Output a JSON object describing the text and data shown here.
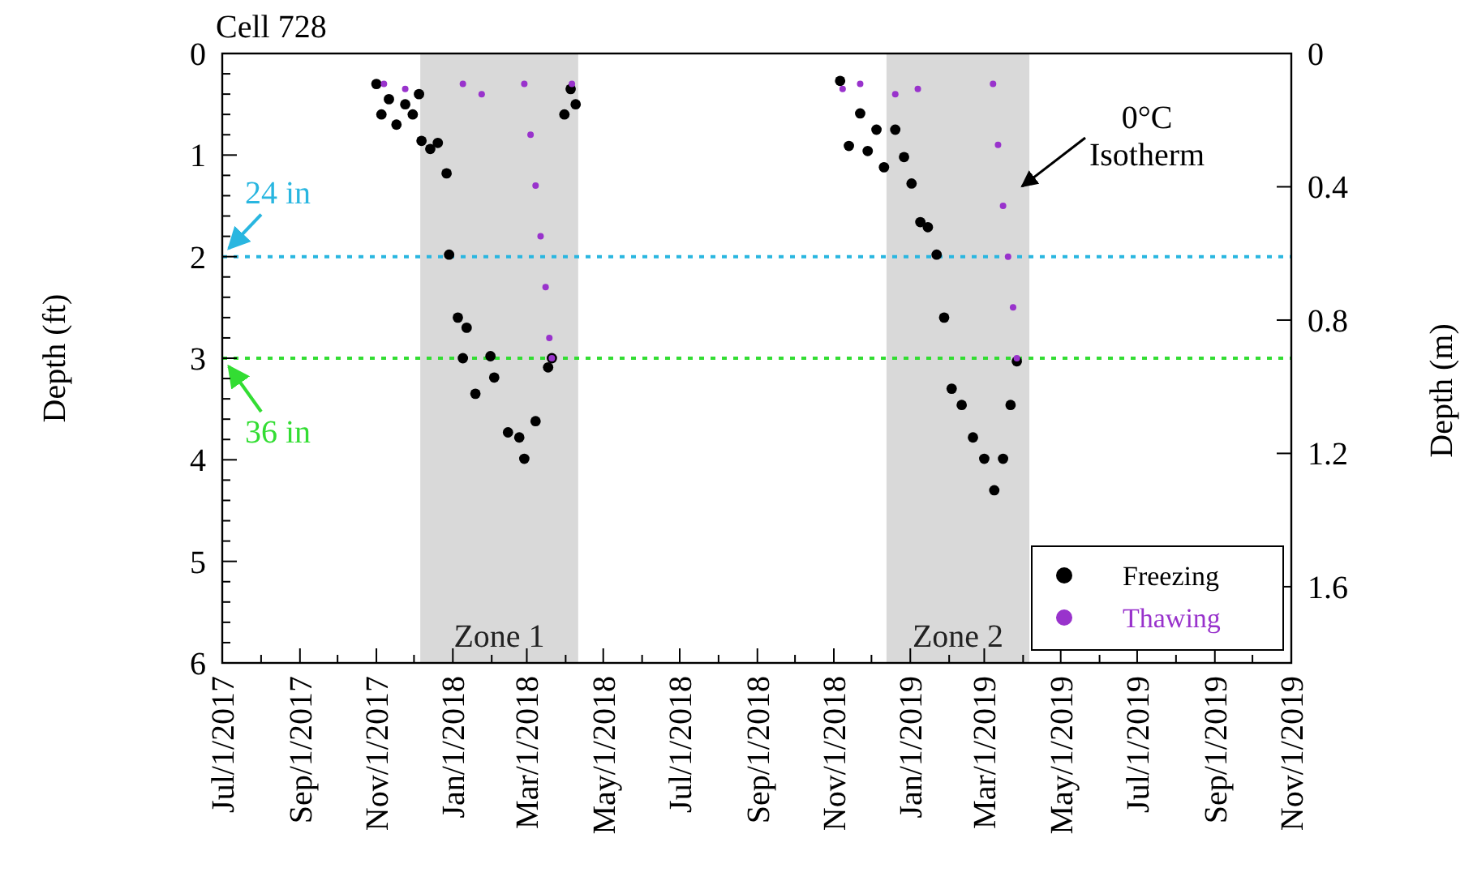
{
  "chart_data": {
    "type": "scatter",
    "title": "Cell 728",
    "ylabel": "Depth (ft)",
    "y2label": "Depth (m)",
    "ylim": [
      6,
      0
    ],
    "yticks": [
      0,
      {
        "value": 0.2,
        "label": null
      },
      {
        "value": 0.4,
        "label": null
      },
      {
        "value": 0.6,
        "label": null
      },
      {
        "value": 0.8,
        "label": null
      },
      1,
      {
        "value": 1.2,
        "label": null
      },
      {
        "value": 1.4,
        "label": null
      },
      {
        "value": 1.6,
        "label": null
      },
      {
        "value": 1.8,
        "label": null
      },
      2,
      {
        "value": 2.2,
        "label": null
      },
      {
        "value": 2.4,
        "label": null
      },
      {
        "value": 2.6,
        "label": null
      },
      {
        "value": 2.8,
        "label": null
      },
      3,
      {
        "value": 3.2,
        "label": null
      },
      {
        "value": 3.4,
        "label": null
      },
      {
        "value": 3.6,
        "label": null
      },
      {
        "value": 3.8,
        "label": null
      },
      4,
      {
        "value": 4.2,
        "label": null
      },
      {
        "value": 4.4,
        "label": null
      },
      {
        "value": 4.6,
        "label": null
      },
      {
        "value": 4.8,
        "label": null
      },
      5,
      {
        "value": 5.2,
        "label": null
      },
      {
        "value": 5.4,
        "label": null
      },
      {
        "value": 5.6,
        "label": null
      },
      {
        "value": 5.8,
        "label": null
      },
      6
    ],
    "y2lim": [
      1.8288,
      0
    ],
    "y2ticks": [
      0,
      0.4,
      0.8,
      1.2,
      1.6
    ],
    "xlim": [
      "2017-07-01",
      "2019-11-01"
    ],
    "xticks": [
      {
        "value": "2017-07-01",
        "label": "Jul/1/2017"
      },
      {
        "value": "2017-08-01",
        "label": null
      },
      {
        "value": "2017-09-01",
        "label": "Sep/1/2017"
      },
      {
        "value": "2017-10-01",
        "label": null
      },
      {
        "value": "2017-11-01",
        "label": "Nov/1/2017"
      },
      {
        "value": "2017-12-01",
        "label": null
      },
      {
        "value": "2018-01-01",
        "label": "Jan/1/2018"
      },
      {
        "value": "2018-02-01",
        "label": null
      },
      {
        "value": "2018-03-01",
        "label": "Mar/1/2018"
      },
      {
        "value": "2018-04-01",
        "label": null
      },
      {
        "value": "2018-05-01",
        "label": "May/1/2018"
      },
      {
        "value": "2018-06-01",
        "label": null
      },
      {
        "value": "2018-07-01",
        "label": "Jul/1/2018"
      },
      {
        "value": "2018-08-01",
        "label": null
      },
      {
        "value": "2018-09-01",
        "label": "Sep/1/2018"
      },
      {
        "value": "2018-10-01",
        "label": null
      },
      {
        "value": "2018-11-01",
        "label": "Nov/1/2018"
      },
      {
        "value": "2018-12-01",
        "label": null
      },
      {
        "value": "2019-01-01",
        "label": "Jan/1/2019"
      },
      {
        "value": "2019-02-01",
        "label": null
      },
      {
        "value": "2019-03-01",
        "label": "Mar/1/2019"
      },
      {
        "value": "2019-04-01",
        "label": null
      },
      {
        "value": "2019-05-01",
        "label": "May/1/2019"
      },
      {
        "value": "2019-06-01",
        "label": null
      },
      {
        "value": "2019-07-01",
        "label": "Jul/1/2019"
      },
      {
        "value": "2019-08-01",
        "label": null
      },
      {
        "value": "2019-09-01",
        "label": "Sep/1/2019"
      },
      {
        "value": "2019-10-01",
        "label": null
      },
      {
        "value": "2019-11-01",
        "label": "Nov/1/2019"
      }
    ],
    "series": [
      {
        "name": "Freezing",
        "color": "#000000",
        "x": [
          "2017-11-01",
          "2017-11-05",
          "2017-11-11",
          "2017-11-17",
          "2017-11-24",
          "2017-11-30",
          "2017-12-05",
          "2017-12-07",
          "2017-12-14",
          "2017-12-20",
          "2017-12-27",
          "2017-12-29",
          "2018-01-05",
          "2018-01-09",
          "2018-01-12",
          "2018-01-19",
          "2018-01-31",
          "2018-02-03",
          "2018-02-14",
          "2018-02-23",
          "2018-02-27",
          "2018-03-08",
          "2018-03-18",
          "2018-03-21",
          "2018-03-31",
          "2018-04-05",
          "2018-04-09",
          "2018-11-06",
          "2018-11-13",
          "2018-11-22",
          "2018-11-28",
          "2018-12-05",
          "2018-12-11",
          "2018-12-20",
          "2018-12-27",
          "2019-01-02",
          "2019-01-09",
          "2019-01-15",
          "2019-01-22",
          "2019-01-28",
          "2019-02-03",
          "2019-02-11",
          "2019-02-20",
          "2019-03-01",
          "2019-03-09",
          "2019-03-16",
          "2019-03-22",
          "2019-03-27"
        ],
        "values": [
          0.3,
          0.6,
          0.45,
          0.7,
          0.5,
          0.6,
          0.4,
          0.86,
          0.94,
          0.88,
          1.18,
          1.98,
          2.6,
          3.0,
          2.7,
          3.35,
          2.98,
          3.19,
          3.73,
          3.78,
          3.99,
          3.62,
          3.09,
          3.0,
          0.6,
          0.35,
          0.5,
          0.27,
          0.91,
          0.59,
          0.96,
          0.75,
          1.12,
          0.75,
          1.02,
          1.28,
          1.66,
          1.71,
          1.98,
          2.6,
          3.3,
          3.46,
          3.78,
          3.99,
          4.3,
          3.99,
          3.46,
          3.03
        ]
      },
      {
        "name": "Thawing",
        "color": "#9933cc",
        "x": [
          "2017-11-07",
          "2017-11-24",
          "2018-01-09",
          "2018-01-24",
          "2018-02-27",
          "2018-03-04",
          "2018-03-08",
          "2018-03-12",
          "2018-03-16",
          "2018-03-19",
          "2018-03-21",
          "2018-04-06",
          "2018-11-08",
          "2018-11-22",
          "2018-12-20",
          "2019-01-07",
          "2019-03-08",
          "2019-03-12",
          "2019-03-16",
          "2019-03-20",
          "2019-03-24",
          "2019-03-27"
        ],
        "values": [
          0.3,
          0.35,
          0.3,
          0.4,
          0.3,
          0.8,
          1.3,
          1.8,
          2.3,
          2.8,
          3.0,
          0.3,
          0.35,
          0.3,
          0.4,
          0.35,
          0.3,
          0.9,
          1.5,
          2.0,
          2.5,
          3.0
        ]
      }
    ],
    "marker": "circle",
    "legend": "bottom right",
    "ref_lines": [
      {
        "axis": "y",
        "value": 2,
        "label": "24 in",
        "color": "#29b6e0",
        "line_style": "dotted"
      },
      {
        "axis": "y",
        "value": 3,
        "label": "36 in",
        "color": "#33dd33",
        "line_style": "dotted"
      }
    ],
    "bands": [
      {
        "axis": "x",
        "from": "2017-12-06",
        "to": "2018-04-11",
        "label": "Zone 1",
        "color": "#d9d9d9"
      },
      {
        "axis": "x",
        "from": "2018-12-13",
        "to": "2019-04-06",
        "label": "Zone 2",
        "color": "#d9d9d9"
      }
    ],
    "annotations": [
      "0°C Isotherm"
    ]
  }
}
